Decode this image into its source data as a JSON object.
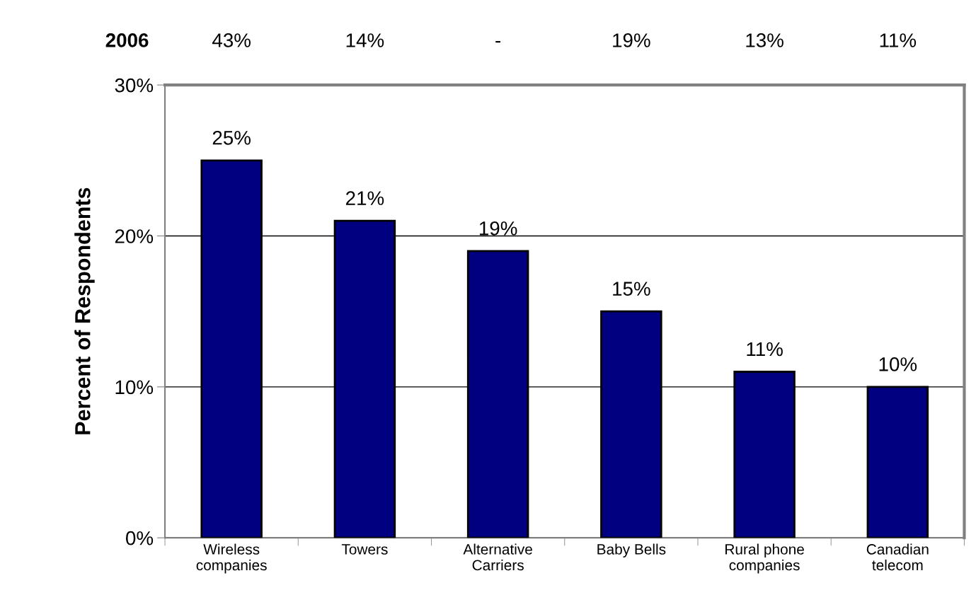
{
  "chart_data": {
    "type": "bar",
    "ylabel": "Percent of Respondents",
    "categories": [
      "Wireless\ncompanies",
      "Towers",
      "Alternative\nCarriers",
      "Baby Bells",
      "Rural phone\ncompanies",
      "Canadian\ntelecom"
    ],
    "values": [
      25,
      21,
      19,
      15,
      11,
      10
    ],
    "color": "#000080",
    "value_labels": [
      "25%",
      "21%",
      "19%",
      "15%",
      "11%",
      "10%"
    ],
    "ylim": [
      0,
      30
    ],
    "yticks": [
      {
        "value": 0,
        "label": "0%"
      },
      {
        "value": 10,
        "label": "10%"
      },
      {
        "value": 20,
        "label": "20%"
      },
      {
        "value": 30,
        "label": "30%"
      }
    ],
    "grid": "y",
    "annotations": [
      "2006",
      "43%",
      "14%",
      "-",
      "19%",
      "13%",
      "11%"
    ]
  }
}
